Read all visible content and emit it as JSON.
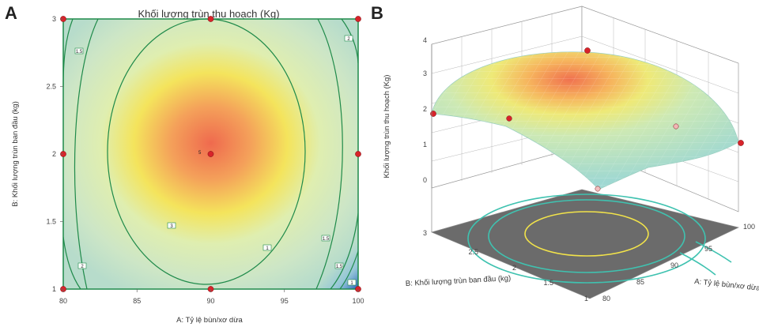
{
  "chart_data": [
    {
      "panel": "A",
      "type": "contour",
      "title": "Khối lượng trùn thu hoạch (Kg)",
      "xlabel": "A: Tỷ lệ bùn/xơ dừa",
      "ylabel": "B: Khối lượng trùn ban đầu (kg)",
      "xlim": [
        80,
        100
      ],
      "ylim": [
        1,
        3
      ],
      "xticks": [
        "80",
        "85",
        "90",
        "95",
        "100"
      ],
      "yticks": [
        "1",
        "1.5",
        "2",
        "2.5",
        "3"
      ],
      "design_points": [
        {
          "x": 80,
          "y": 1
        },
        {
          "x": 90,
          "y": 1
        },
        {
          "x": 100,
          "y": 1
        },
        {
          "x": 80,
          "y": 2
        },
        {
          "x": 90,
          "y": 2
        },
        {
          "x": 100,
          "y": 2
        },
        {
          "x": 80,
          "y": 3
        },
        {
          "x": 90,
          "y": 3
        },
        {
          "x": 100,
          "y": 3
        }
      ],
      "center_label": "5",
      "contour_labels": [
        "1.5",
        "3",
        "2",
        "1",
        "1.5",
        "2",
        "1.5",
        "1"
      ]
    },
    {
      "panel": "B",
      "type": "surface3d",
      "zlabel": "Khối lượng trùn thu hoạch (Kg)",
      "xlabel": "A: Tỷ lệ bùn/xơ dừa",
      "ylabel": "B: Khối lượng trùn ban đầu (kg)",
      "zticks": [
        "0",
        "1",
        "2",
        "3",
        "4"
      ],
      "xticks": [
        "80",
        "85",
        "90",
        "95",
        "100"
      ],
      "yticks": [
        "1",
        "1.5",
        "2",
        "2.5",
        "3"
      ]
    }
  ],
  "colors": {
    "peak": "#ee6a4c",
    "mid": "#f5e85a",
    "low": "#cfe7c4",
    "contour": "#1f8a4a",
    "point": "#d8232a",
    "floor": "#6f6f6f"
  }
}
